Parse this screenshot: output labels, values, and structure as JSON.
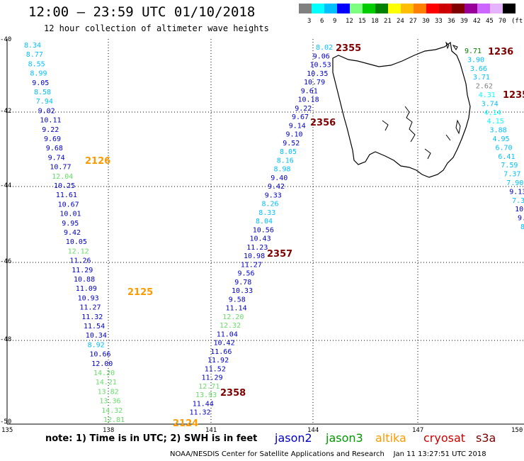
{
  "title": "12:00 – 23:59 UTC 01/10/2018",
  "subtitle": "12 hour collection of altimeter wave heights",
  "scale": {
    "labels": [
      "3",
      "6",
      "9",
      "12",
      "15",
      "18",
      "21",
      "24",
      "27",
      "30",
      "33",
      "36",
      "39",
      "42",
      "45",
      "70",
      "(ft)"
    ],
    "colors": [
      "#808080",
      "#00ffff",
      "#00bfff",
      "#0000ff",
      "#7fff7f",
      "#00cc00",
      "#008000",
      "#ffff00",
      "#ffbf00",
      "#ff8000",
      "#ff0000",
      "#cc0000",
      "#800000",
      "#990099",
      "#cc66ff",
      "#e6b3ff",
      "#000000"
    ]
  },
  "axes": {
    "lat_labels": [
      "-40",
      "-42",
      "-44",
      "-46",
      "-48",
      "-50"
    ],
    "lon_labels": [
      "135",
      "138",
      "141",
      "144",
      "147",
      "150"
    ]
  },
  "tracks": [
    {
      "name": "track-west",
      "readings": [
        {
          "v": "8.34",
          "c": "#00bfff"
        },
        {
          "v": "8.77",
          "c": "#00bfff"
        },
        {
          "v": "8.55",
          "c": "#00bfff"
        },
        {
          "v": "8.99",
          "c": "#00bfff"
        },
        {
          "v": "9.05",
          "c": "#0000cc"
        },
        {
          "v": "8.58",
          "c": "#00bfff"
        },
        {
          "v": "7.94",
          "c": "#00bfff"
        },
        {
          "v": "9.02",
          "c": "#0000cc"
        },
        {
          "v": "10.11",
          "c": "#0000cc"
        },
        {
          "v": "9.22",
          "c": "#0000cc"
        },
        {
          "v": "9.69",
          "c": "#0000cc"
        },
        {
          "v": "9.68",
          "c": "#0000cc"
        },
        {
          "v": "9.74",
          "c": "#0000cc"
        },
        {
          "v": "10.77",
          "c": "#0000cc"
        },
        {
          "v": "12.04",
          "c": "#66dd66"
        },
        {
          "v": "10.25",
          "c": "#0000cc"
        },
        {
          "v": "11.61",
          "c": "#0000cc"
        },
        {
          "v": "10.67",
          "c": "#0000cc"
        },
        {
          "v": "10.01",
          "c": "#0000cc"
        },
        {
          "v": "9.95",
          "c": "#0000cc"
        },
        {
          "v": "9.42",
          "c": "#0000cc"
        },
        {
          "v": "10.05",
          "c": "#0000cc"
        },
        {
          "v": "12.12",
          "c": "#66dd66"
        },
        {
          "v": "11.26",
          "c": "#0000cc"
        },
        {
          "v": "11.29",
          "c": "#0000cc"
        },
        {
          "v": "10.88",
          "c": "#0000cc"
        },
        {
          "v": "11.09",
          "c": "#0000cc"
        },
        {
          "v": "10.93",
          "c": "#0000cc"
        },
        {
          "v": "11.27",
          "c": "#0000cc"
        },
        {
          "v": "11.32",
          "c": "#0000cc"
        },
        {
          "v": "11.54",
          "c": "#0000cc"
        },
        {
          "v": "10.34",
          "c": "#0000cc"
        },
        {
          "v": "8.92",
          "c": "#00bfff"
        },
        {
          "v": "10.66",
          "c": "#0000cc"
        },
        {
          "v": "12.00",
          "c": "#0000cc"
        },
        {
          "v": "14.20",
          "c": "#66dd66"
        },
        {
          "v": "14.21",
          "c": "#66dd66"
        },
        {
          "v": "13.82",
          "c": "#66dd66"
        },
        {
          "v": "13.36",
          "c": "#66dd66"
        },
        {
          "v": "14.32",
          "c": "#66dd66"
        },
        {
          "v": "12.81",
          "c": "#66dd66"
        }
      ]
    },
    {
      "name": "track-central",
      "readings": [
        {
          "v": "8.02",
          "c": "#00bfff"
        },
        {
          "v": "9.06",
          "c": "#0000cc"
        },
        {
          "v": "10.53",
          "c": "#0000cc"
        },
        {
          "v": "10.35",
          "c": "#0000cc"
        },
        {
          "v": "10.79",
          "c": "#0000cc"
        },
        {
          "v": "9.61",
          "c": "#0000cc"
        },
        {
          "v": "10.18",
          "c": "#0000cc"
        },
        {
          "v": "9.22",
          "c": "#0000cc"
        },
        {
          "v": "9.67",
          "c": "#0000cc"
        },
        {
          "v": "9.14",
          "c": "#0000cc"
        },
        {
          "v": "9.10",
          "c": "#0000cc"
        },
        {
          "v": "9.52",
          "c": "#0000cc"
        },
        {
          "v": "8.05",
          "c": "#00bfff"
        },
        {
          "v": "8.16",
          "c": "#00bfff"
        },
        {
          "v": "8.98",
          "c": "#00bfff"
        },
        {
          "v": "9.40",
          "c": "#0000cc"
        },
        {
          "v": "9.42",
          "c": "#0000cc"
        },
        {
          "v": "9.33",
          "c": "#0000cc"
        },
        {
          "v": "8.26",
          "c": "#00bfff"
        },
        {
          "v": "8.33",
          "c": "#00bfff"
        },
        {
          "v": "8.04",
          "c": "#00bfff"
        },
        {
          "v": "10.56",
          "c": "#0000cc"
        },
        {
          "v": "10.43",
          "c": "#0000cc"
        },
        {
          "v": "11.23",
          "c": "#0000cc"
        },
        {
          "v": "10.98",
          "c": "#0000cc"
        },
        {
          "v": "11.27",
          "c": "#0000cc"
        },
        {
          "v": "9.56",
          "c": "#0000cc"
        },
        {
          "v": "9.78",
          "c": "#0000cc"
        },
        {
          "v": "10.33",
          "c": "#0000cc"
        },
        {
          "v": "9.58",
          "c": "#0000cc"
        },
        {
          "v": "11.14",
          "c": "#0000cc"
        },
        {
          "v": "12.20",
          "c": "#66dd66"
        },
        {
          "v": "12.32",
          "c": "#66dd66"
        },
        {
          "v": "11.04",
          "c": "#0000cc"
        },
        {
          "v": "10.42",
          "c": "#0000cc"
        },
        {
          "v": "11.66",
          "c": "#0000cc"
        },
        {
          "v": "11.92",
          "c": "#0000cc"
        },
        {
          "v": "11.52",
          "c": "#0000cc"
        },
        {
          "v": "11.29",
          "c": "#0000cc"
        },
        {
          "v": "12.71",
          "c": "#66dd66"
        },
        {
          "v": "13.93",
          "c": "#66dd66"
        },
        {
          "v": "11.44",
          "c": "#0000cc"
        },
        {
          "v": "11.32",
          "c": "#0000cc"
        }
      ]
    },
    {
      "name": "track-east",
      "readings": [
        {
          "v": "9.71",
          "c": "#008000"
        },
        {
          "v": "3.90",
          "c": "#00bfff"
        },
        {
          "v": "3.66",
          "c": "#00bfff"
        },
        {
          "v": "3.71",
          "c": "#00bfff"
        },
        {
          "v": "2.62",
          "c": "#808080"
        },
        {
          "v": "4.31",
          "c": "#00ffff"
        },
        {
          "v": "3.74",
          "c": "#00bfff"
        },
        {
          "v": "4.14",
          "c": "#00ffff"
        },
        {
          "v": "4.15",
          "c": "#00ffff"
        },
        {
          "v": "3.88",
          "c": "#00bfff"
        },
        {
          "v": "4.95",
          "c": "#00bfff"
        },
        {
          "v": "6.70",
          "c": "#00bfff"
        },
        {
          "v": "6.41",
          "c": "#00bfff"
        },
        {
          "v": "7.59",
          "c": "#00bfff"
        },
        {
          "v": "7.37",
          "c": "#00bfff"
        },
        {
          "v": "7.90",
          "c": "#00bfff"
        },
        {
          "v": "9.13",
          "c": "#0000cc"
        },
        {
          "v": "7.3",
          "c": "#00bfff"
        },
        {
          "v": "10.",
          "c": "#0000cc"
        },
        {
          "v": "9.",
          "c": "#0000cc"
        },
        {
          "v": "8",
          "c": "#00bfff"
        }
      ]
    }
  ],
  "time_labels": [
    {
      "text": "2126",
      "c": "#ff9900"
    },
    {
      "text": "2125",
      "c": "#ff9900"
    },
    {
      "text": "2124",
      "c": "#ff9900"
    },
    {
      "text": "2355",
      "c": "#800000"
    },
    {
      "text": "2356",
      "c": "#800000"
    },
    {
      "text": "2357",
      "c": "#800000"
    },
    {
      "text": "2358",
      "c": "#800000"
    },
    {
      "text": "1236",
      "c": "#800000"
    },
    {
      "text": "1235",
      "c": "#800000"
    }
  ],
  "note": "note: 1) Time is in UTC; 2) SWH is in feet",
  "legend": [
    {
      "name": "jason2",
      "color": "#0000cc"
    },
    {
      "name": "jason3",
      "color": "#009900"
    },
    {
      "name": "altika",
      "color": "#ff9900"
    },
    {
      "name": "cryosat",
      "color": "#cc0000"
    },
    {
      "name": "s3a",
      "color": "#800000"
    }
  ],
  "credit": "NOAA/NESDIS Center for Satellite Applications and Research    Jan 11 13:27:51 UTC 2018"
}
